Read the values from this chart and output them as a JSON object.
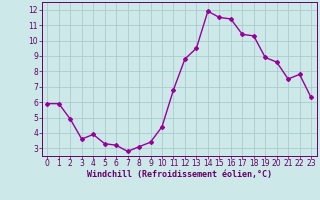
{
  "x": [
    0,
    1,
    2,
    3,
    4,
    5,
    6,
    7,
    8,
    9,
    10,
    11,
    12,
    13,
    14,
    15,
    16,
    17,
    18,
    19,
    20,
    21,
    22,
    23
  ],
  "y": [
    5.9,
    5.9,
    4.9,
    3.6,
    3.9,
    3.3,
    3.2,
    2.8,
    3.1,
    3.4,
    4.4,
    6.8,
    8.8,
    9.5,
    11.9,
    11.5,
    11.4,
    10.4,
    10.3,
    8.9,
    8.6,
    7.5,
    7.8,
    6.3
  ],
  "line_color": "#990099",
  "marker": "D",
  "marker_size": 2.0,
  "line_width": 1.0,
  "background_color": "#cce8e8",
  "grid_color": "#aacccc",
  "xlabel": "Windchill (Refroidissement éolien,°C)",
  "xlabel_color": "#660066",
  "tick_color": "#660066",
  "xlim": [
    -0.5,
    23.5
  ],
  "ylim": [
    2.5,
    12.5
  ],
  "yticks": [
    3,
    4,
    5,
    6,
    7,
    8,
    9,
    10,
    11,
    12
  ],
  "xticks": [
    0,
    1,
    2,
    3,
    4,
    5,
    6,
    7,
    8,
    9,
    10,
    11,
    12,
    13,
    14,
    15,
    16,
    17,
    18,
    19,
    20,
    21,
    22,
    23
  ],
  "axis_line_color": "#660066",
  "tick_fontsize": 5.5,
  "xlabel_fontsize": 6.0
}
